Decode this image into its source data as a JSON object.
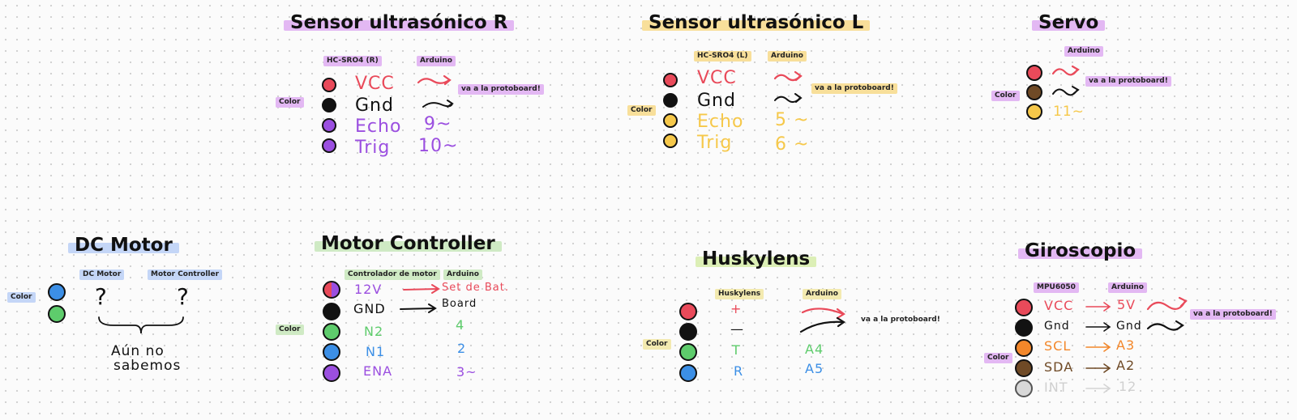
{
  "colors": {
    "red": "#e94a5a",
    "black": "#121212",
    "purple": "#9b4fe0",
    "yellow": "#f6c84a",
    "brown": "#6f4a26",
    "blue": "#3c8fe6",
    "green": "#5ecc6c",
    "orange": "#f3872a",
    "gray": "#c8c8c8",
    "hl_lilac": "#e3b8f3",
    "hl_yellow": "#f8df9a",
    "hl_blue": "#c4d6f7",
    "hl_green": "#cfeac4"
  },
  "sensor_r": {
    "title": "Sensor ultrasónico R",
    "col_sensor": "HC-SRO4 (R)",
    "col_arduino": "Arduino",
    "color_label": "Color",
    "note": "va a la protoboard!",
    "pins": [
      {
        "name": "VCC",
        "value": "",
        "color": "red"
      },
      {
        "name": "Gnd",
        "value": "",
        "color": "black"
      },
      {
        "name": "Echo",
        "value": "9~",
        "color": "purple"
      },
      {
        "name": "Trig",
        "value": "10~",
        "color": "purple"
      }
    ]
  },
  "sensor_l": {
    "title": "Sensor ultrasónico L",
    "col_sensor": "HC-SRO4 (L)",
    "col_arduino": "Arduino",
    "color_label": "Color",
    "note": "va a la protoboard!",
    "pins": [
      {
        "name": "VCC",
        "value": "",
        "color": "red"
      },
      {
        "name": "Gnd",
        "value": "",
        "color": "black"
      },
      {
        "name": "Echo",
        "value": "5 ~",
        "color": "yellow"
      },
      {
        "name": "Trig",
        "value": "6 ~",
        "color": "yellow"
      }
    ]
  },
  "servo": {
    "title": "Servo",
    "col_arduino": "Arduino",
    "color_label": "Color",
    "note": "va a la protoboard!",
    "pins": [
      {
        "value": "",
        "color": "red"
      },
      {
        "value": "",
        "color": "brown"
      },
      {
        "value": "11~",
        "color": "yellow"
      }
    ]
  },
  "dc_motor": {
    "title": "DC Motor",
    "col_motor": "DC Motor",
    "col_controller": "Motor Controller",
    "color_label": "Color",
    "q_left": "?",
    "q_right": "?",
    "note_line1": "Aún no",
    "note_line2": "sabemos"
  },
  "motor_controller": {
    "title": "Motor Controller",
    "col_controller": "Controlador de motor",
    "col_arduino": "Arduino",
    "color_label": "Color",
    "pins": [
      {
        "name": "12V",
        "value": "Set de Bat.",
        "color": "purple"
      },
      {
        "name": "GND",
        "value": "Board",
        "color": "black"
      },
      {
        "name": "N2",
        "value": "4",
        "color": "green"
      },
      {
        "name": "N1",
        "value": "2",
        "color": "blue"
      },
      {
        "name": "ENA",
        "value": "3~",
        "color": "purple"
      }
    ]
  },
  "huskylens": {
    "title": "Huskylens",
    "col_device": "Huskylens",
    "col_arduino": "Arduino",
    "color_label": "Color",
    "note": "va a la protoboard!",
    "pins": [
      {
        "name": "+",
        "value": "",
        "color": "red"
      },
      {
        "name": "—",
        "value": "",
        "color": "black"
      },
      {
        "name": "T",
        "value": "A4",
        "color": "green"
      },
      {
        "name": "R",
        "value": "A5",
        "color": "blue"
      }
    ]
  },
  "giroscopio": {
    "title": "Giroscopio",
    "col_device": "MPU6050",
    "col_arduino": "Arduino",
    "color_label": "Color",
    "note": "va a la protoboard!",
    "pins": [
      {
        "name": "VCC",
        "value": "5V",
        "color": "red"
      },
      {
        "name": "Gnd",
        "value": "Gnd",
        "color": "black"
      },
      {
        "name": "SCL",
        "value": "A3",
        "color": "orange"
      },
      {
        "name": "SDA",
        "value": "A2",
        "color": "brown"
      },
      {
        "name": "INT",
        "value": "12",
        "color": "gray"
      }
    ]
  }
}
